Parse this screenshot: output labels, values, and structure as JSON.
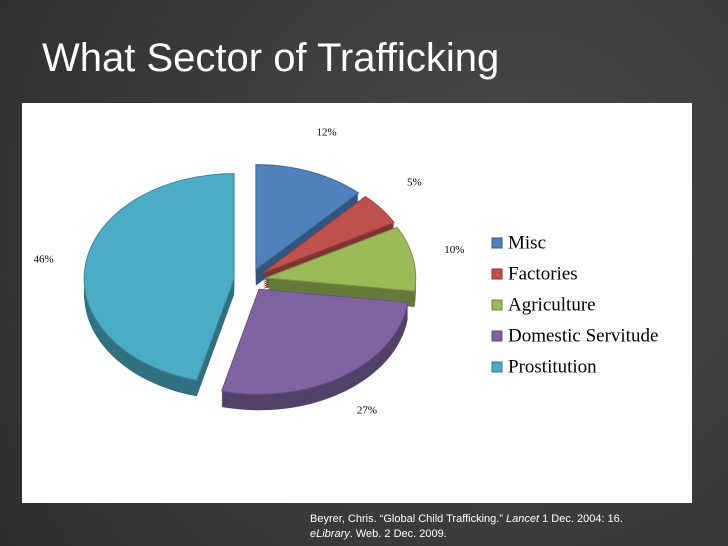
{
  "slide": {
    "title": "What Sector of Trafficking",
    "citation": [
      [
        "Beyrer, Chris. “Global Child Trafficking.” ",
        "Lancet",
        " 1 Dec. 2004: 16."
      ],
      [
        "eLibrary",
        ". Web. 2 Dec. 2009."
      ]
    ]
  },
  "chart_data": {
    "type": "pie",
    "categories": [
      "Misc",
      "Factories",
      "Agriculture",
      "Domestic Servitude",
      "Prostitution"
    ],
    "values": [
      12,
      5,
      10,
      27,
      46
    ],
    "value_labels": [
      "12%",
      "5%",
      "10%",
      "27%",
      "46%"
    ],
    "colors": [
      "#4f81bd",
      "#c0504d",
      "#9bbb59",
      "#8064a2",
      "#4bacc6"
    ],
    "legend": "right"
  }
}
